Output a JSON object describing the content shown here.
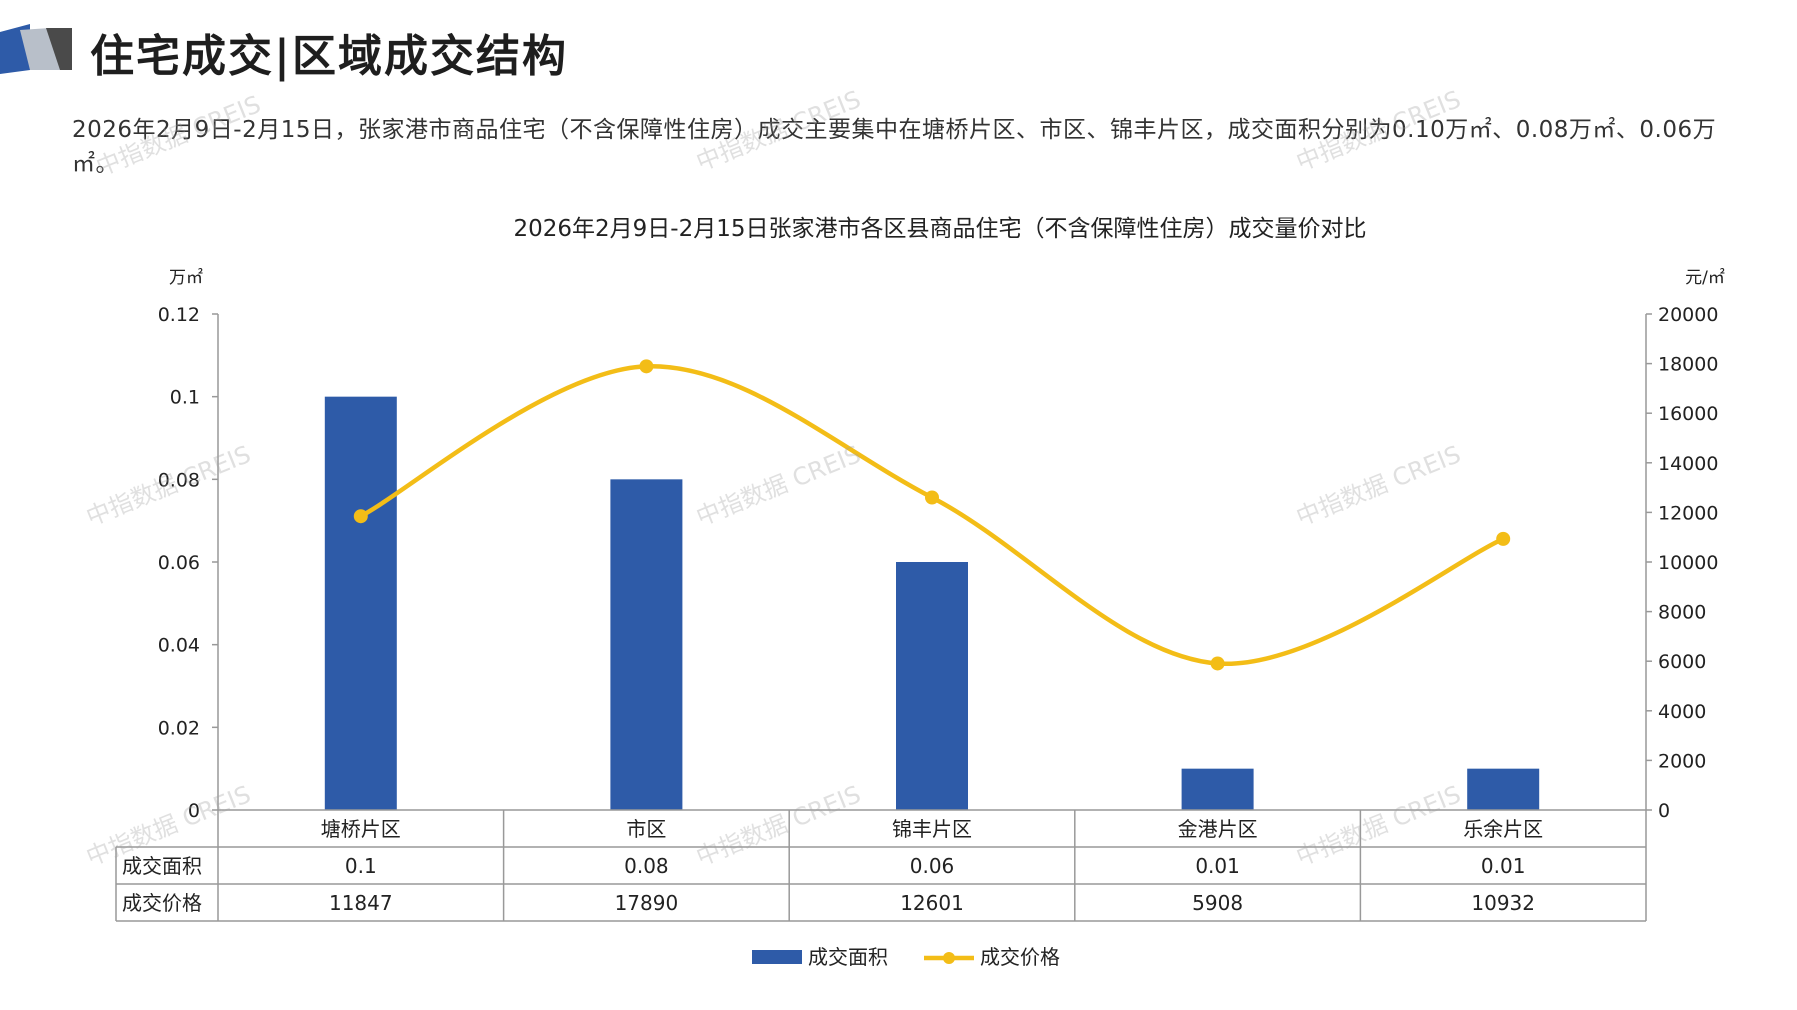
{
  "header": {
    "title": "住宅成交|区域成交结构",
    "summary": "2026年2月9日-2月15日，张家港市商品住宅（不含保障性住房）成交主要集中在塘桥片区、市区、锦丰片区，成交面积分别为0.10万㎡、0.08万㎡、0.06万㎡。"
  },
  "watermark": {
    "text": "中指数据 CREIS"
  },
  "colors": {
    "bar": "#2e5ba8",
    "line": "#f3bd17",
    "grid": "#999999",
    "text": "#222222"
  },
  "chart_data": {
    "type": "bar",
    "title": "2026年2月9日-2月15日张家港市各区县商品住宅（不含保障性住房）成交量价对比",
    "categories": [
      "塘桥片区",
      "市区",
      "锦丰片区",
      "金港片区",
      "乐余片区"
    ],
    "left_axis": {
      "unit": "万㎡",
      "ylim": [
        0,
        0.12
      ],
      "ticks": [
        "0",
        "0.02",
        "0.04",
        "0.06",
        "0.08",
        "0.1",
        "0.12"
      ],
      "tick_values": [
        0,
        0.02,
        0.04,
        0.06,
        0.08,
        0.1,
        0.12
      ]
    },
    "right_axis": {
      "unit": "元/㎡",
      "ylim": [
        0,
        20000
      ],
      "ticks": [
        "0",
        "2000",
        "4000",
        "6000",
        "8000",
        "10000",
        "12000",
        "14000",
        "16000",
        "18000",
        "20000"
      ],
      "tick_values": [
        0,
        2000,
        4000,
        6000,
        8000,
        10000,
        12000,
        14000,
        16000,
        18000,
        20000
      ]
    },
    "series": [
      {
        "name": "成交面积",
        "type": "bar",
        "axis": "left",
        "values": [
          0.1,
          0.08,
          0.06,
          0.01,
          0.01
        ],
        "labels": [
          "0.1",
          "0.08",
          "0.06",
          "0.01",
          "0.01"
        ]
      },
      {
        "name": "成交价格",
        "type": "line",
        "axis": "right",
        "smooth": true,
        "values": [
          11847,
          17890,
          12601,
          5908,
          10932
        ],
        "labels": [
          "11847",
          "17890",
          "12601",
          "5908",
          "10932"
        ]
      }
    ],
    "data_table": true,
    "legend": "bottom-center"
  }
}
